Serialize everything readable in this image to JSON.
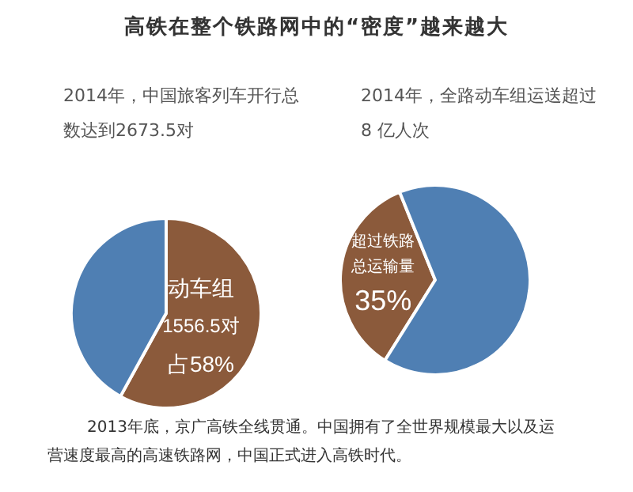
{
  "chart_data": [
    {
      "type": "pie",
      "title": "高铁在整个铁路网中的“密度”越来越大",
      "subtitle": "2014年，中国旅客列车开行总数达到2673.5对",
      "categories": [
        "动车组",
        null
      ],
      "values": [
        58,
        42
      ],
      "colors": [
        "#8b5a3b",
        "#4f7fb3"
      ],
      "value_labels": [
        "占58%",
        null
      ],
      "annotations": [
        "1556.5对"
      ]
    },
    {
      "type": "pie",
      "subtitle": "2014年，全路动车组运送超过 8 亿人次",
      "categories": [
        "超过铁路总运输量",
        null
      ],
      "values": [
        35,
        65
      ],
      "colors": [
        "#8b5a3b",
        "#4f7fb3"
      ],
      "value_labels": [
        "35%",
        null
      ],
      "annotations": [
        "2013年底，京广高铁全线贯通。中国拥有了全世界规模最大以及运营速度最高的高速铁路网，中国正式进入高铁时代。"
      ]
    }
  ]
}
